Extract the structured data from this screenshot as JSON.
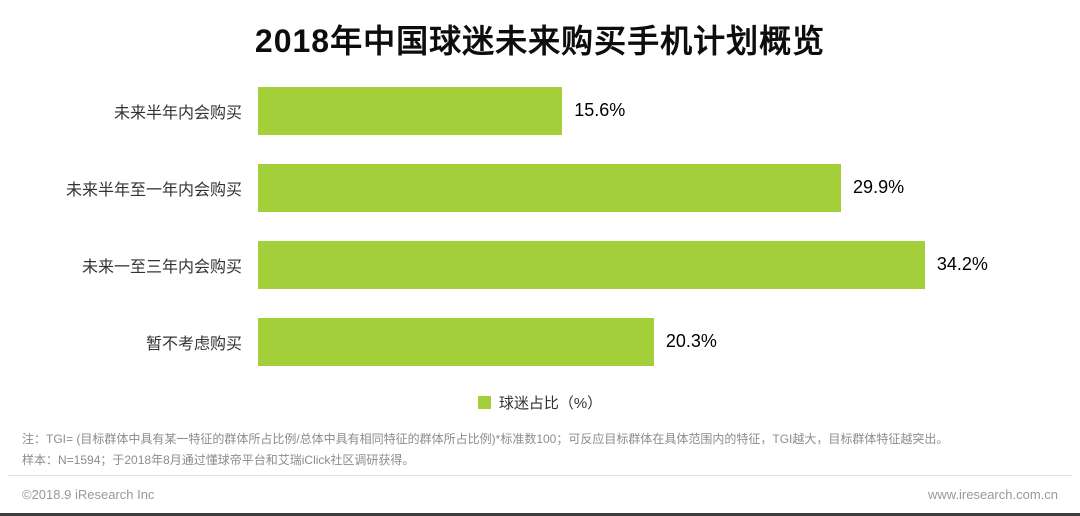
{
  "title": "2018年中国球迷未来购买手机计划概览",
  "chart_data": {
    "type": "bar",
    "orientation": "horizontal",
    "title": "2018年中国球迷未来购买手机计划概览",
    "categories": [
      "未来半年内会购买",
      "未来半年至一年内会购买",
      "未来一至三年内会购买",
      "暂不考虑购买"
    ],
    "values": [
      15.6,
      29.9,
      34.2,
      20.3
    ],
    "value_labels": [
      "15.6%",
      "29.9%",
      "34.2%",
      "20.3%"
    ],
    "xlim": [
      0,
      40
    ],
    "grid": false,
    "bar_color": "#a3cf3b",
    "legend_position": "bottom",
    "legend": [
      {
        "label": "球迷占比（%）",
        "color": "#a3cf3b"
      }
    ]
  },
  "notes": {
    "line1": "注：TGI= (目标群体中具有某一特征的群体所占比例/总体中具有相同特征的群体所占比例)*标准数100；可反应目标群体在具体范围内的特征，TGI越大，目标群体特征越突出。",
    "line2": "样本：N=1594；于2018年8月通过懂球帝平台和艾瑞iClick社区调研获得。"
  },
  "footer": {
    "left": "©2018.9 iResearch Inc",
    "right": "www.iresearch.com.cn"
  }
}
